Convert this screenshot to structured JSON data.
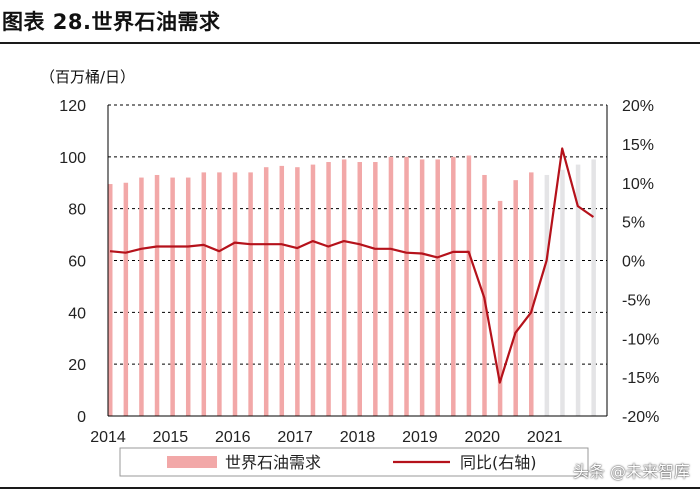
{
  "title": "图表 28.世界石油需求",
  "unit_label": "（百万桶/日）",
  "watermark": "头条 @未来智库",
  "colors": {
    "bar": "#f2a8a8",
    "bar_forecast": "#e4e4e6",
    "line": "#b5121b",
    "grid": "#000000"
  },
  "chart_data": {
    "type": "bar+line",
    "title": "图表 28.世界石油需求",
    "ylabel_left": "（百万桶/日）",
    "ylim_left": [
      0,
      120
    ],
    "yticks_left": [
      0,
      20,
      40,
      60,
      80,
      100,
      120
    ],
    "ylim_right": [
      -20,
      20
    ],
    "yticks_right": [
      "20%",
      "15%",
      "10%",
      "5%",
      "0%",
      "-5%",
      "-10%",
      "-15%",
      "-20%"
    ],
    "x_labels": [
      "2014",
      "2015",
      "2016",
      "2017",
      "2018",
      "2019",
      "2020",
      "2021"
    ],
    "x_range": [
      2014.0,
      2022.0
    ],
    "legend": [
      "世界石油需求",
      "同比(右轴)"
    ],
    "legend_position": "bottom",
    "grid": "horizontal-dashed",
    "series": [
      {
        "name": "世界石油需求",
        "type": "bar",
        "x": [
          2014.0,
          2014.25,
          2014.5,
          2014.75,
          2015.0,
          2015.25,
          2015.5,
          2015.75,
          2016.0,
          2016.25,
          2016.5,
          2016.75,
          2017.0,
          2017.25,
          2017.5,
          2017.75,
          2018.0,
          2018.25,
          2018.5,
          2018.75,
          2019.0,
          2019.25,
          2019.5,
          2019.75,
          2020.0,
          2020.25,
          2020.5,
          2020.75,
          2021.0,
          2021.25,
          2021.5,
          2021.75
        ],
        "values": [
          89.5,
          90,
          92,
          93,
          92,
          92,
          94,
          94,
          94,
          94,
          96,
          96.5,
          96,
          97,
          98,
          99,
          98,
          98,
          100,
          100,
          99,
          99,
          100,
          100.5,
          93,
          83,
          91,
          94,
          93,
          95,
          97,
          99
        ],
        "forecast_from_index": 28
      },
      {
        "name": "同比(右轴)",
        "type": "line",
        "x": [
          2014.0,
          2014.25,
          2014.5,
          2014.75,
          2015.0,
          2015.25,
          2015.5,
          2015.75,
          2016.0,
          2016.25,
          2016.5,
          2016.75,
          2017.0,
          2017.25,
          2017.5,
          2017.75,
          2018.0,
          2018.25,
          2018.5,
          2018.75,
          2019.0,
          2019.25,
          2019.5,
          2019.75,
          2020.0,
          2020.25,
          2020.5,
          2020.75,
          2021.0,
          2021.25,
          2021.5,
          2021.75
        ],
        "values": [
          1.2,
          1.0,
          1.5,
          1.8,
          1.8,
          1.8,
          2.0,
          1.2,
          2.3,
          2.1,
          2.1,
          2.1,
          1.6,
          2.5,
          1.8,
          2.5,
          2.1,
          1.5,
          1.5,
          1.0,
          0.9,
          0.4,
          1.1,
          1.1,
          -4.8,
          -15.7,
          -9.3,
          -6.7,
          0.0,
          14.4,
          7.0,
          5.6
        ]
      }
    ]
  }
}
